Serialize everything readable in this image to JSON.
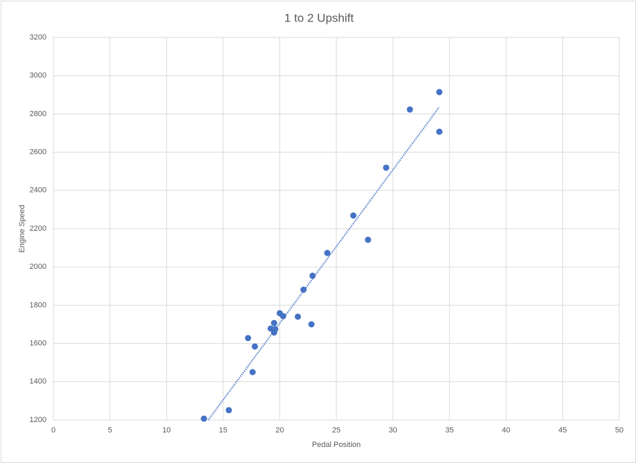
{
  "chart_data": {
    "type": "scatter",
    "title": "1 to 2 Upshift",
    "x_label": "Pedal Position",
    "y_label": "Engine Speed",
    "x": [
      13.3,
      15.5,
      17.2,
      17.8,
      17.6,
      19.2,
      19.5,
      19.5,
      19.6,
      20.0,
      20.3,
      21.6,
      22.1,
      22.8,
      22.9,
      24.2,
      26.5,
      27.8,
      29.4,
      31.5,
      34.1,
      34.1
    ],
    "series": [
      {
        "name": "Engine Speed",
        "color": "#4472c4",
        "values": [
          1207,
          1251,
          1628,
          1584,
          1450,
          1678,
          1707,
          1657,
          1675,
          1758,
          1743,
          1740,
          1881,
          1700,
          1954,
          2073,
          2269,
          2142,
          2519,
          2823,
          2914,
          2707
        ]
      }
    ],
    "xlim": [
      0,
      50
    ],
    "xticks": [
      0,
      5,
      10,
      15,
      20,
      25,
      30,
      35,
      40,
      45,
      50
    ],
    "ylim": [
      1200,
      3200
    ],
    "yticks": [
      1200,
      1400,
      1600,
      1800,
      2000,
      2200,
      2400,
      2600,
      2800,
      3000,
      3200
    ],
    "grid": true,
    "trendline": "linear"
  }
}
